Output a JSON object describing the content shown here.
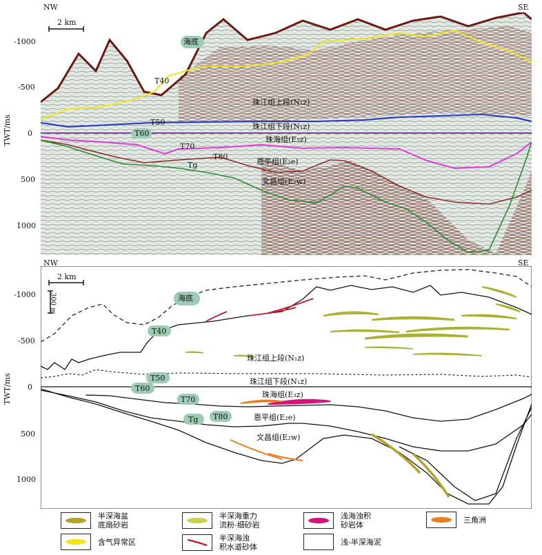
{
  "top_panel": {
    "nw": "NW",
    "se": "SE",
    "scale": "2 km",
    "y_axis_label": "TWT/ms",
    "y_ticks": [
      "-1000",
      "-500",
      "0",
      "500",
      "1000"
    ],
    "seafloor": "海底",
    "horizons": [
      "T40",
      "T50",
      "T60",
      "T70",
      "T80",
      "Tg"
    ],
    "units": {
      "zhujiang_upper": "珠江组上段(N₁z)",
      "zhujiang_lower": "珠江组下段(N₁z)",
      "zhuhai": "珠海组(E₃z)",
      "enping": "恩平组(E₂e)",
      "wenchang": "文昌组(E₂w)"
    }
  },
  "bottom_panel": {
    "nw": "NW",
    "se": "SE",
    "scale": "2 km",
    "vscale": "300 m",
    "y_axis_label": "TWT/ms",
    "y_ticks": [
      "-1000",
      "-500",
      "0",
      "500",
      "1000"
    ],
    "seafloor": "海底",
    "horizons": [
      "T40",
      "T50",
      "T60",
      "T70",
      "T80",
      "Tg"
    ],
    "units": {
      "zhujiang_upper": "珠江组上段(N₁z)",
      "zhujiang_lower": "珠江组下段(N₁z)",
      "zhuhai": "珠海组(E₃z)",
      "enping": "恩平组(E₂e)",
      "wenchang": "文昌组(E₂w)"
    }
  },
  "legend": [
    {
      "label": "半深海盆\n底扇砂岩",
      "color": "#b5a22a"
    },
    {
      "label": "半深海重力\n流粉-细砂岩",
      "color": "#c9d24a"
    },
    {
      "label": "浅海浊积\n砂岩体",
      "color": "#d4147a"
    },
    {
      "label": "三角洲",
      "color": "#e87d22"
    },
    {
      "label": "含气异常区",
      "color": "#f4e41c"
    },
    {
      "label": "半深海浊\n积水道砂体",
      "color": "#c0182c"
    },
    {
      "label": "浅-半深海泥",
      "color": "#ffffff"
    }
  ],
  "colors": {
    "seafloor_bubble": "#9dcbb5",
    "t40_line": "#f2e51c",
    "t50_line": "#2233cc",
    "t60_line": "#7a3fa0",
    "t70_line": "#e23ad8",
    "t80_line": "#8a2a2a",
    "tg_line": "#2e8a2e"
  }
}
